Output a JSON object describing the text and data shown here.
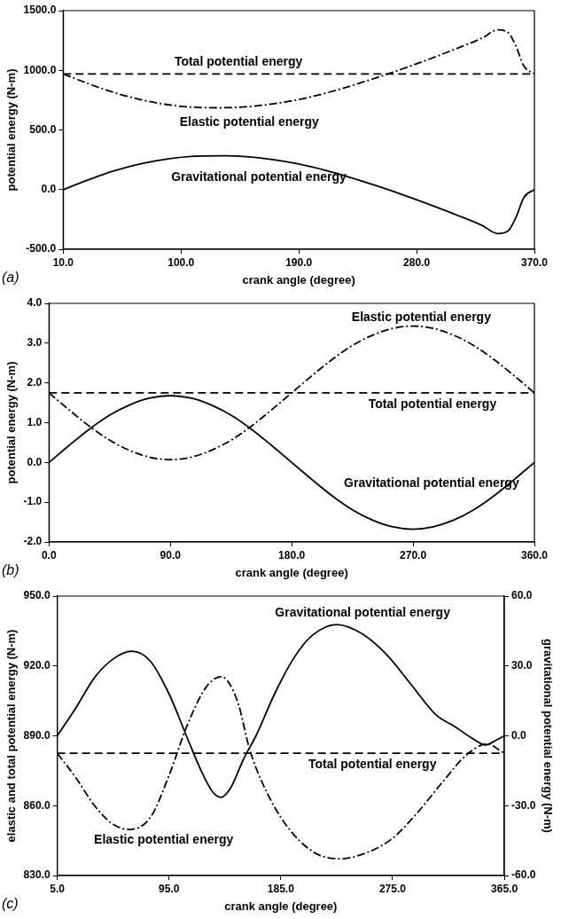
{
  "chart_data": [
    {
      "type": "line",
      "xlabel": "crank angle (degree)",
      "ylabel": "potential energy (N-m)",
      "marker": "none",
      "xlim": [
        10,
        370
      ],
      "xticks": [
        {
          "value": 10,
          "label": "10.0"
        },
        {
          "value": 100,
          "label": "100.0"
        },
        {
          "value": 190,
          "label": "190.0"
        },
        {
          "value": 280,
          "label": "280.0"
        },
        {
          "value": 370,
          "label": "370.0"
        }
      ],
      "ylim": [
        -500,
        1500
      ],
      "yticks": [
        {
          "value": -500,
          "label": "-500.0"
        },
        {
          "value": 0,
          "label": "0.0"
        },
        {
          "value": 500,
          "label": "500.0"
        },
        {
          "value": 1000,
          "label": "1000.0"
        },
        {
          "value": 1500,
          "label": "1500.0"
        }
      ],
      "ref_lines": [
        {
          "axis": "y",
          "value": 970,
          "label": "Total potential energy",
          "color": "#000000",
          "line_style": "dashed"
        }
      ],
      "series": [
        {
          "name": "Elastic potential energy",
          "color": "#000000",
          "line_style": "dashdot",
          "x": [
            10,
            30,
            50,
            70,
            90,
            110,
            130,
            150,
            170,
            190,
            210,
            230,
            250,
            270,
            290,
            310,
            330,
            342,
            350,
            356,
            362,
            370
          ],
          "values": [
            970,
            885,
            810,
            752,
            712,
            690,
            686,
            694,
            718,
            755,
            807,
            870,
            940,
            1015,
            1095,
            1180,
            1270,
            1339,
            1315,
            1200,
            1035,
            970
          ]
        },
        {
          "name": "Gravitational potential energy",
          "color": "#000000",
          "line_style": "solid",
          "x": [
            10,
            30,
            50,
            70,
            90,
            110,
            130,
            150,
            170,
            190,
            210,
            230,
            250,
            270,
            290,
            310,
            330,
            342,
            350,
            356,
            362,
            370
          ],
          "values": [
            0,
            85,
            160,
            218,
            258,
            280,
            284,
            276,
            252,
            215,
            163,
            100,
            30,
            -45,
            -125,
            -210,
            -300,
            -369,
            -345,
            -230,
            -65,
            0
          ]
        }
      ],
      "annotations": [
        "(a)"
      ]
    },
    {
      "type": "line",
      "xlabel": "crank angle (degree)",
      "ylabel": "potential energy (N-m)",
      "marker": "none",
      "xlim": [
        0,
        360
      ],
      "xticks": [
        {
          "value": 0,
          "label": "0.0"
        },
        {
          "value": 90,
          "label": "90.0"
        },
        {
          "value": 180,
          "label": "180.0"
        },
        {
          "value": 270,
          "label": "270.0"
        },
        {
          "value": 360,
          "label": "360.0"
        }
      ],
      "ylim": [
        -2,
        4
      ],
      "yticks": [
        {
          "value": -2,
          "label": "-2.0"
        },
        {
          "value": -1,
          "label": "-1.0"
        },
        {
          "value": 0,
          "label": "0.0"
        },
        {
          "value": 1,
          "label": "1.0"
        },
        {
          "value": 2,
          "label": "2.0"
        },
        {
          "value": 3,
          "label": "3.0"
        },
        {
          "value": 4,
          "label": "4.0"
        }
      ],
      "ref_lines": [
        {
          "axis": "y",
          "value": 1.75,
          "label": "Total potential energy",
          "color": "#000000",
          "line_style": "dashed"
        }
      ],
      "series": [
        {
          "name": "Elastic potential energy",
          "color": "#000000",
          "line_style": "dashdot",
          "x": [
            0,
            15,
            30,
            45,
            60,
            75,
            90,
            105,
            120,
            135,
            150,
            165,
            180,
            195,
            210,
            225,
            240,
            255,
            270,
            285,
            300,
            315,
            330,
            345,
            360
          ],
          "values": [
            1.75,
            1.32,
            0.91,
            0.56,
            0.3,
            0.13,
            0.07,
            0.13,
            0.3,
            0.56,
            0.91,
            1.32,
            1.75,
            2.18,
            2.59,
            2.94,
            3.2,
            3.37,
            3.43,
            3.37,
            3.2,
            2.94,
            2.59,
            2.18,
            1.75
          ]
        },
        {
          "name": "Gravitational potential energy",
          "color": "#000000",
          "line_style": "solid",
          "x": [
            0,
            15,
            30,
            45,
            60,
            75,
            90,
            105,
            120,
            135,
            150,
            165,
            180,
            195,
            210,
            225,
            240,
            255,
            270,
            285,
            300,
            315,
            330,
            345,
            360
          ],
          "values": [
            0,
            0.43,
            0.84,
            1.19,
            1.45,
            1.62,
            1.68,
            1.62,
            1.45,
            1.19,
            0.84,
            0.43,
            0,
            -0.43,
            -0.84,
            -1.19,
            -1.45,
            -1.62,
            -1.68,
            -1.62,
            -1.45,
            -1.19,
            -0.84,
            -0.43,
            0
          ]
        }
      ],
      "annotations": [
        "(b)"
      ]
    },
    {
      "type": "line",
      "xlabel": "crank angle (degree)",
      "ylabel": "elastic and total potential energy (N-m)",
      "y2label": "gravitational potential energy (N-m)",
      "marker": "none",
      "xlim": [
        5,
        365
      ],
      "xticks": [
        {
          "value": 5,
          "label": "5.0"
        },
        {
          "value": 95,
          "label": "95.0"
        },
        {
          "value": 185,
          "label": "185.0"
        },
        {
          "value": 275,
          "label": "275.0"
        },
        {
          "value": 365,
          "label": "365.0"
        }
      ],
      "ylim": [
        830,
        950
      ],
      "yticks": [
        {
          "value": 830,
          "label": "830.0"
        },
        {
          "value": 860,
          "label": "860.0"
        },
        {
          "value": 890,
          "label": "890.0"
        },
        {
          "value": 920,
          "label": "920.0"
        },
        {
          "value": 950,
          "label": "950.0"
        }
      ],
      "y2lim": [
        -60,
        60
      ],
      "y2ticks": [
        {
          "value": -60,
          "label": "-60.0"
        },
        {
          "value": -30,
          "label": "-30.0"
        },
        {
          "value": 0,
          "label": "0.0"
        },
        {
          "value": 30,
          "label": "30.0"
        },
        {
          "value": 60,
          "label": "60.0"
        }
      ],
      "ref_lines": [
        {
          "axis": "y",
          "value": 882.5,
          "label": "Total potential energy",
          "color": "#000000",
          "line_style": "dashed"
        }
      ],
      "series": [
        {
          "name": "Elastic potential energy",
          "color": "#000000",
          "line_style": "dashdot",
          "x": [
            5,
            20,
            35,
            50,
            63,
            80,
            95,
            110,
            125,
            137,
            150,
            160,
            170,
            185,
            200,
            215,
            233,
            255,
            275,
            295,
            315,
            335,
            351,
            365
          ],
          "values": [
            882.5,
            872,
            860,
            852,
            849.8,
            855,
            873,
            895,
            911,
            915.4,
            905,
            884,
            870,
            855,
            845,
            839,
            837.2,
            840,
            846,
            857,
            870,
            882,
            886.5,
            882.5
          ]
        },
        {
          "name": "Gravitational potential energy",
          "color": "#000000",
          "line_style": "solid",
          "axis": "y2",
          "x": [
            5,
            20,
            35,
            50,
            65,
            80,
            95,
            109,
            120,
            130,
            137,
            145,
            155,
            165,
            180,
            195,
            210,
            230,
            250,
            270,
            290,
            310,
            325,
            339,
            350,
            358,
            365
          ],
          "values": [
            0,
            12,
            25,
            33,
            36.3,
            32,
            18,
            0,
            -14,
            -24,
            -26.4,
            -22,
            -10,
            0,
            18,
            33,
            43,
            47.8,
            44,
            35,
            22,
            9,
            4,
            -1,
            -3.9,
            -2,
            0
          ]
        }
      ],
      "annotations": [
        "(c)"
      ]
    }
  ]
}
